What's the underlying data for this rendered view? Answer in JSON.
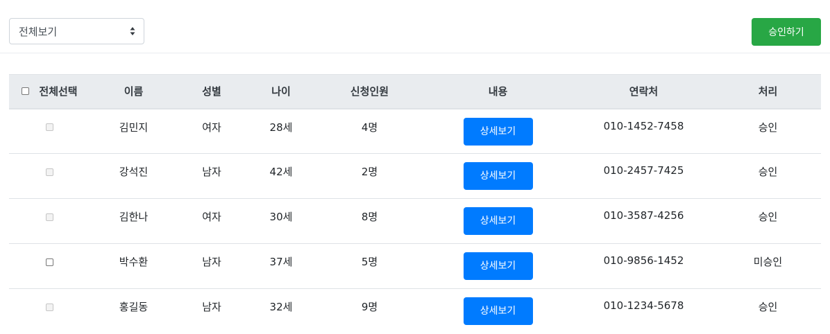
{
  "toolbar": {
    "filter_value": "전체보기",
    "approve_label": "승인하기"
  },
  "table": {
    "headers": {
      "select_all": "전체선택",
      "name": "이름",
      "gender": "성별",
      "age": "나이",
      "applicants": "신청인원",
      "content": "내용",
      "contact": "연락처",
      "status": "처리"
    },
    "detail_label": "상세보기",
    "rows": [
      {
        "name": "김민지",
        "gender": "여자",
        "age": "28세",
        "applicants": "4명",
        "contact": "010-1452-7458",
        "status": "승인",
        "checkbox_disabled": true
      },
      {
        "name": "강석진",
        "gender": "남자",
        "age": "42세",
        "applicants": "2명",
        "contact": "010-2457-7425",
        "status": "승인",
        "checkbox_disabled": true
      },
      {
        "name": "김한나",
        "gender": "여자",
        "age": "30세",
        "applicants": "8명",
        "contact": "010-3587-4256",
        "status": "승인",
        "checkbox_disabled": true
      },
      {
        "name": "박수환",
        "gender": "남자",
        "age": "37세",
        "applicants": "5명",
        "contact": "010-9856-1452",
        "status": "미승인",
        "checkbox_disabled": false
      },
      {
        "name": "홍길동",
        "gender": "남자",
        "age": "32세",
        "applicants": "9명",
        "contact": "010-1234-5678",
        "status": "승인",
        "checkbox_disabled": true
      }
    ]
  },
  "colors": {
    "approve_button": "#28a745",
    "detail_button": "#007bff",
    "header_background": "#e9ecef"
  }
}
